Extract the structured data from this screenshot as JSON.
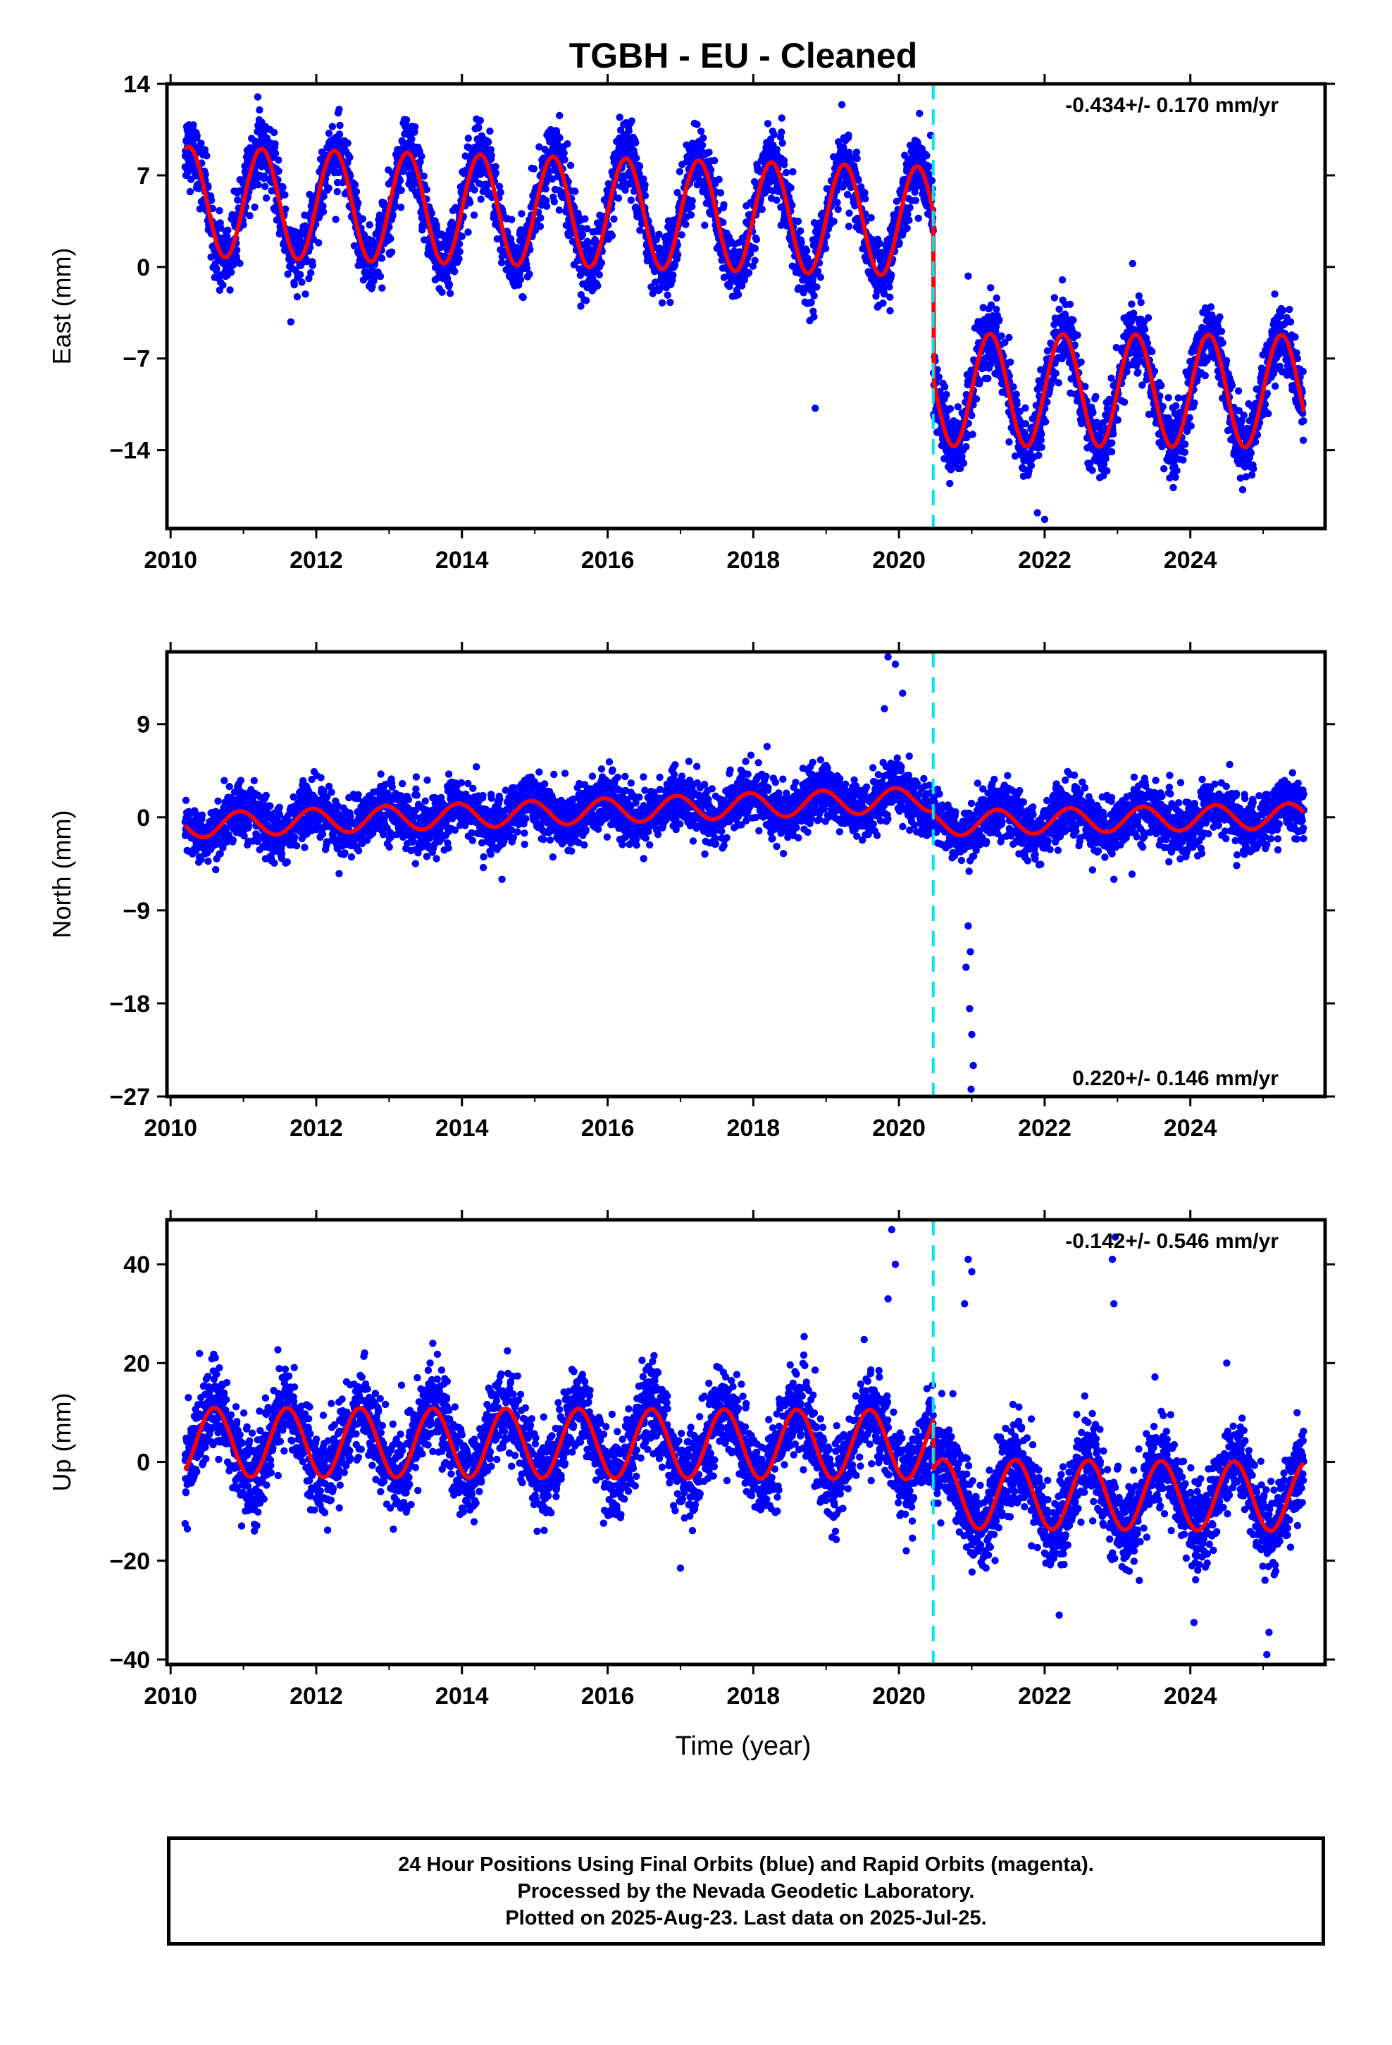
{
  "title": "TGBH  - EU - Cleaned",
  "xlabel": "Time (year)",
  "footer": {
    "line1": "24 Hour Positions Using Final Orbits (blue) and Rapid Orbits (magenta).",
    "line2": "Processed by the Nevada Geodetic Laboratory.",
    "line3": "Plotted on 2025-Aug-23. Last data on 2025-Jul-25."
  },
  "colors": {
    "points": "#0000ff",
    "model": "#ff0000",
    "event": "#00e5ee",
    "frame": "#000000"
  },
  "chart_data": [
    {
      "type": "scatter",
      "component": "east",
      "ylabel": "East (mm)",
      "xlim": [
        2009.95,
        2025.85
      ],
      "ylim": [
        -20,
        14
      ],
      "xticks": [
        2010,
        2012,
        2014,
        2016,
        2018,
        2020,
        2022,
        2024
      ],
      "yticks": [
        14,
        7,
        0,
        -7,
        -14
      ],
      "ytick_labels": [
        "14",
        "7",
        "0",
        "−7",
        "−14"
      ],
      "rate_label": "-0.434+/- 0.170 mm/yr",
      "rate_position": "top-right",
      "event_line_x": 2020.47,
      "data_span": [
        2010.2,
        2025.56
      ],
      "model": {
        "segments": [
          {
            "x0": 2010.2,
            "x1": 2020.47,
            "mean_at_x0": 5.0,
            "trend": -0.15,
            "annual_amplitude": 4.2,
            "annual_peak_year_fraction": 0.25
          },
          {
            "x0": 2020.47,
            "x1": 2025.56,
            "mean_at_x0": -9.4,
            "trend": -0.02,
            "annual_amplitude": 4.3,
            "annual_peak_year_fraction": 0.25
          }
        ]
      },
      "scatter_sd": 1.3,
      "outliers": [
        [
          2021.9,
          -18.8
        ],
        [
          2022.0,
          -19.3
        ],
        [
          2020.95,
          -0.7
        ],
        [
          2018.85,
          -10.8
        ],
        [
          2011.65,
          -4.2
        ]
      ],
      "series": [
        {
          "name": "24 Hour Positions (Final Orbits)",
          "marker": "dot"
        },
        {
          "name": "model",
          "marker": "line"
        }
      ]
    },
    {
      "type": "scatter",
      "component": "north",
      "ylabel": "North (mm)",
      "xlim": [
        2009.95,
        2025.85
      ],
      "ylim": [
        -27,
        16
      ],
      "xticks": [
        2010,
        2012,
        2014,
        2016,
        2018,
        2020,
        2022,
        2024
      ],
      "yticks": [
        9,
        0,
        -9,
        -18,
        -27
      ],
      "ytick_labels": [
        "9",
        "0",
        "−9",
        "−18",
        "−27"
      ],
      "rate_label": "0.220+/- 0.146 mm/yr",
      "rate_position": "bottom-right",
      "event_line_x": 2020.47,
      "data_span": [
        2010.2,
        2025.56
      ],
      "model": {
        "segments": [
          {
            "x0": 2010.2,
            "x1": 2020.47,
            "mean_at_x0": -0.8,
            "trend": 0.25,
            "annual_amplitude": 1.2,
            "annual_peak_year_fraction": 0.95
          },
          {
            "x0": 2020.47,
            "x1": 2025.56,
            "mean_at_x0": -0.6,
            "trend": 0.15,
            "annual_amplitude": 1.2,
            "annual_peak_year_fraction": 0.35
          }
        ]
      },
      "scatter_sd": 1.3,
      "outliers": [
        [
          2019.85,
          15.5
        ],
        [
          2019.95,
          14.8
        ],
        [
          2020.05,
          12.0
        ],
        [
          2019.8,
          10.5
        ],
        [
          2020.95,
          -10.5
        ],
        [
          2020.98,
          -13.0
        ],
        [
          2020.92,
          -14.5
        ],
        [
          2021.0,
          -21.0
        ],
        [
          2021.02,
          -24.0
        ],
        [
          2020.99,
          -26.3
        ],
        [
          2020.97,
          -18.5
        ],
        [
          2022.95,
          -6.0
        ],
        [
          2023.2,
          -5.5
        ],
        [
          2013.65,
          -4.0
        ],
        [
          2014.55,
          -6.0
        ]
      ],
      "series": [
        {
          "name": "24 Hour Positions (Final Orbits)",
          "marker": "dot"
        },
        {
          "name": "model",
          "marker": "line"
        }
      ]
    },
    {
      "type": "scatter",
      "component": "up",
      "ylabel": "Up (mm)",
      "xlabel": "Time (year)",
      "xlim": [
        2009.95,
        2025.85
      ],
      "ylim": [
        -41,
        49
      ],
      "xticks": [
        2010,
        2012,
        2014,
        2016,
        2018,
        2020,
        2022,
        2024
      ],
      "yticks": [
        40,
        20,
        0,
        -20,
        -40
      ],
      "ytick_labels": [
        "40",
        "20",
        "0",
        "−20",
        "−40"
      ],
      "rate_label": "-0.142+/- 0.546 mm/yr",
      "rate_position": "top-right",
      "event_line_x": 2020.47,
      "data_span": [
        2010.2,
        2025.56
      ],
      "model": {
        "segments": [
          {
            "x0": 2010.2,
            "x1": 2020.47,
            "mean_at_x0": 4.0,
            "trend": -0.05,
            "annual_amplitude": 7.0,
            "annual_peak_year_fraction": 0.6
          },
          {
            "x0": 2020.47,
            "x1": 2025.56,
            "mean_at_x0": -6.5,
            "trend": -0.1,
            "annual_amplitude": 7.0,
            "annual_peak_year_fraction": 0.6
          }
        ]
      },
      "scatter_sd": 4.2,
      "outliers": [
        [
          2019.9,
          47.0
        ],
        [
          2019.95,
          40.0
        ],
        [
          2019.85,
          33.0
        ],
        [
          2020.95,
          41.0
        ],
        [
          2021.0,
          38.5
        ],
        [
          2020.9,
          32.0
        ],
        [
          2022.97,
          45.5
        ],
        [
          2022.93,
          41.0
        ],
        [
          2022.95,
          32.0
        ],
        [
          2020.1,
          -18.0
        ],
        [
          2017.0,
          -21.5
        ],
        [
          2022.2,
          -31.0
        ],
        [
          2023.3,
          -24.0
        ],
        [
          2024.05,
          -32.5
        ],
        [
          2025.05,
          -39.0
        ],
        [
          2025.08,
          -34.5
        ],
        [
          2010.2,
          -12.5
        ],
        [
          2011.15,
          -14.0
        ],
        [
          2024.5,
          20.0
        ],
        [
          2013.6,
          24.0
        ]
      ],
      "series": [
        {
          "name": "24 Hour Positions (Final Orbits)",
          "marker": "dot"
        },
        {
          "name": "model",
          "marker": "line"
        }
      ]
    }
  ]
}
